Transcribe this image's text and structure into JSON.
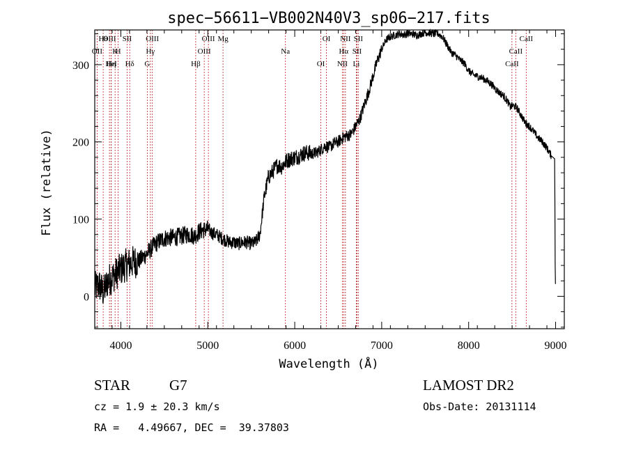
{
  "chart_data": {
    "type": "line",
    "title": "spec−56611−VB002N40V3_sp06−217.fits",
    "xlabel": "Wavelength (Å)",
    "ylabel": "Flux (relative)",
    "xlim": [
      3700,
      9100
    ],
    "ylim": [
      -42,
      345
    ],
    "xticks": [
      4000,
      5000,
      6000,
      7000,
      8000,
      9000
    ],
    "yticks": [
      0,
      100,
      200,
      300
    ],
    "grid": false,
    "series": [
      {
        "x": [
          3700,
          3750,
          3800,
          3850,
          3900,
          3950,
          4000,
          4050,
          4100,
          4150,
          4200,
          4250,
          4300,
          4350,
          4400,
          4450,
          4500,
          4550,
          4600,
          4650,
          4700,
          4750,
          4800,
          4850,
          4900,
          4950,
          5000,
          5050,
          5100,
          5150,
          5200,
          5250,
          5300,
          5350,
          5400,
          5450,
          5500,
          5550,
          5600,
          5650,
          5700,
          5750,
          5800,
          5850,
          5900,
          5950,
          6000,
          6050,
          6100,
          6150,
          6200,
          6250,
          6300,
          6350,
          6400,
          6450,
          6500,
          6550,
          6600,
          6650,
          6700,
          6750,
          6800,
          6850,
          6900,
          6950,
          7000,
          7050,
          7100,
          7150,
          7200,
          7250,
          7300,
          7350,
          7400,
          7450,
          7500,
          7550,
          7600,
          7650,
          7700,
          7750,
          7800,
          7850,
          7900,
          7950,
          8000,
          8050,
          8100,
          8150,
          8200,
          8250,
          8300,
          8350,
          8400,
          8450,
          8480,
          8500,
          8550,
          8600,
          8650,
          8700,
          8750,
          8800,
          8850,
          8900,
          8950,
          8990,
          8995,
          9000
        ],
        "y": [
          10,
          15,
          5,
          20,
          25,
          30,
          35,
          40,
          42,
          45,
          45,
          50,
          55,
          62,
          68,
          72,
          75,
          76,
          76,
          77,
          78,
          80,
          80,
          78,
          84,
          86,
          87,
          82,
          80,
          76,
          73,
          70,
          70,
          68,
          70,
          70,
          68,
          70,
          80,
          130,
          155,
          162,
          170,
          168,
          175,
          178,
          180,
          182,
          185,
          186,
          185,
          186,
          190,
          195,
          193,
          198,
          200,
          205,
          208,
          210,
          220,
          230,
          248,
          265,
          285,
          305,
          320,
          332,
          336,
          338,
          340,
          339,
          340,
          340,
          338,
          340,
          342,
          341,
          340,
          340,
          336,
          326,
          316,
          312,
          306,
          302,
          292,
          287,
          285,
          283,
          280,
          276,
          270,
          264,
          260,
          252,
          245,
          247,
          245,
          235,
          225,
          220,
          213,
          205,
          200,
          192,
          182,
          178,
          40,
          0
        ]
      }
    ],
    "line_markers": [
      {
        "label": "Hθ",
        "x": 3797
      },
      {
        "label": "OII",
        "x": 3727
      },
      {
        "label": "HeI",
        "x": 3889
      },
      {
        "label": "OIII",
        "x": 3869
      },
      {
        "label": "K",
        "x": 3934
      },
      {
        "label": "Hη",
        "x": 3890
      },
      {
        "label": "SII",
        "x": 4072
      },
      {
        "label": "H",
        "x": 3969
      },
      {
        "label": "Hδ",
        "x": 4102
      },
      {
        "label": "OIII",
        "x": 4363
      },
      {
        "label": "Hγ",
        "x": 4340
      },
      {
        "label": "G",
        "x": 4304
      },
      {
        "label": "OIII",
        "x": 5007
      },
      {
        "label": "OIII",
        "x": 4959
      },
      {
        "label": "Hβ",
        "x": 4861
      },
      {
        "label": "Mg",
        "x": 5175
      },
      {
        "label": "Na",
        "x": 5893
      },
      {
        "label": "OI",
        "x": 6300
      },
      {
        "label": "OI",
        "x": 6364
      },
      {
        "label": "Hα",
        "x": 6563
      },
      {
        "label": "NII",
        "x": 6548
      },
      {
        "label": "NII",
        "x": 6583
      },
      {
        "label": "SII",
        "x": 6716
      },
      {
        "label": "Li",
        "x": 6708
      },
      {
        "label": "SII",
        "x": 6731
      },
      {
        "label": "CaII",
        "x": 8542
      },
      {
        "label": "CaII",
        "x": 8498
      },
      {
        "label": "CaII",
        "x": 8662
      }
    ]
  },
  "info": {
    "type_label": "STAR",
    "subclass": "G7",
    "cz_text": "cz = 1.9 ± 20.3 km/s",
    "radec_text": "RA =   4.49667, DEC =  39.37803",
    "survey": "LAMOST DR2",
    "obsdate_text": "Obs-Date: 20131114"
  },
  "colors": {
    "spectrum": "#000000",
    "axes": "#000000",
    "line_markers": "#b22222",
    "background": "#ffffff"
  }
}
